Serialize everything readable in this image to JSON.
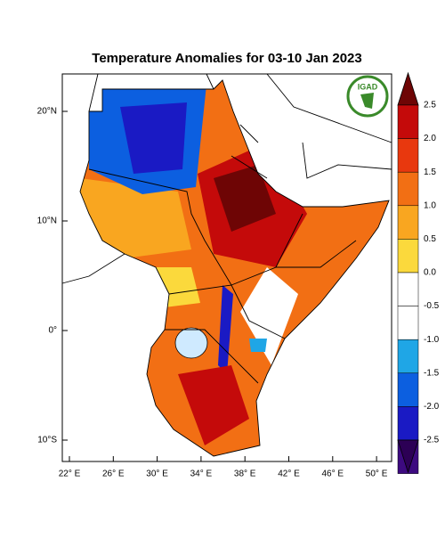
{
  "title": "Temperature Anomalies for 03-10 Jan 2023",
  "logo": "IGAD",
  "lon_labels": [
    "22° E",
    "26° E",
    "30° E",
    "34° E",
    "38° E",
    "42° E",
    "46° E",
    "50° E"
  ],
  "lat_labels": [
    "20°N",
    "10°N",
    "0°",
    "10°S"
  ],
  "colorbar": {
    "labels": [
      "2.5",
      "2.0",
      "1.5",
      "1.0",
      "0.5",
      "0.0",
      "-0.5",
      "-1.0",
      "-1.5",
      "-2.0",
      "-2.5"
    ],
    "colors": [
      "#6e0505",
      "#c40a0a",
      "#e8380e",
      "#f26f14",
      "#f9a620",
      "#fbd93c",
      "#ffffff",
      "#ffffff",
      "#1fa6e6",
      "#0c5fe0",
      "#1a1ac4",
      "#3d0a80",
      "#2c0055"
    ]
  }
}
